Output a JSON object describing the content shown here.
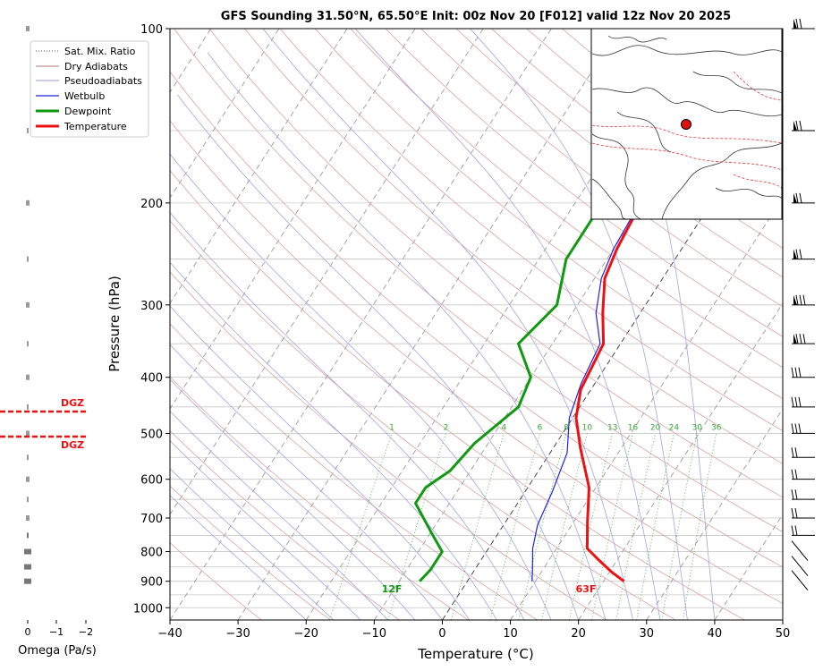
{
  "title": "GFS Sounding 31.50°N, 65.50°E Init: 00z Nov 20 [F012] valid 12z Nov 20 2025",
  "chart_data": {
    "type": "line",
    "subtype": "skew-t log-p",
    "xlabel": "Temperature (°C)",
    "ylabel": "Pressure (hPa)",
    "xlim": [
      -40,
      50
    ],
    "ylim": [
      1050,
      100
    ],
    "yscale": "log",
    "x_ticks": [
      -40,
      -30,
      -20,
      -10,
      0,
      10,
      20,
      30,
      40,
      50
    ],
    "x_tick_labels": [
      "−40",
      "−30",
      "−20",
      "−10",
      "0",
      "10",
      "20",
      "30",
      "40",
      "50"
    ],
    "y_ticks": [
      100,
      200,
      300,
      400,
      500,
      600,
      700,
      800,
      900,
      1000
    ],
    "y_tick_labels": [
      "100",
      "200",
      "300",
      "400",
      "500",
      "600",
      "700",
      "800",
      "900",
      "1000"
    ],
    "grid": true,
    "legend_position": "top-left",
    "legend": [
      "Sat. Mix. Ratio",
      "Dry Adiabats",
      "Pseudoadiabats",
      "Wetbulb",
      "Dewpoint",
      "Temperature"
    ],
    "mixing_ratio_labels": [
      "1",
      "2",
      "4",
      "6",
      "8",
      "10",
      "13",
      "16",
      "20",
      "24",
      "30",
      "36"
    ],
    "series": [
      {
        "name": "Temperature",
        "color": "#ee1111",
        "points": [
          [
            23,
            900
          ],
          [
            20.5,
            870
          ],
          [
            17.5,
            830
          ],
          [
            14.5,
            790
          ],
          [
            12,
            710
          ],
          [
            9,
            620
          ],
          [
            4,
            530
          ],
          [
            0.5,
            470
          ],
          [
            -1.5,
            420
          ],
          [
            -2.5,
            350
          ],
          [
            -5.5,
            310
          ],
          [
            -8.5,
            270
          ],
          [
            -9.5,
            240
          ],
          [
            -10.3,
            200
          ],
          [
            -9.5,
            170
          ],
          [
            -8.5,
            130
          ],
          [
            -7.5,
            100
          ]
        ]
      },
      {
        "name": "Dewpoint",
        "color": "#119911",
        "points": [
          [
            -7,
            900
          ],
          [
            -6.5,
            860
          ],
          [
            -6.5,
            800
          ],
          [
            -10,
            740
          ],
          [
            -15,
            660
          ],
          [
            -15,
            620
          ],
          [
            -13,
            580
          ],
          [
            -12,
            520
          ],
          [
            -9,
            450
          ],
          [
            -10,
            400
          ],
          [
            -15,
            350
          ],
          [
            -13,
            300
          ],
          [
            -16,
            250
          ],
          [
            -16,
            200
          ],
          [
            -17,
            150
          ],
          [
            -17,
            130
          ],
          [
            -12,
            100
          ]
        ]
      },
      {
        "name": "Wetbulb",
        "color": "#2222dd",
        "points": [
          [
            9.5,
            900
          ],
          [
            8.5,
            860
          ],
          [
            6.5,
            790
          ],
          [
            5,
            720
          ],
          [
            4,
            630
          ],
          [
            2.5,
            540
          ],
          [
            -0.5,
            470
          ],
          [
            -2,
            410
          ],
          [
            -3,
            350
          ],
          [
            -6.5,
            310
          ],
          [
            -9,
            270
          ],
          [
            -10,
            240
          ],
          [
            -10.5,
            200
          ],
          [
            -9.5,
            170
          ],
          [
            -8.5,
            130
          ],
          [
            -7.5,
            100
          ]
        ]
      }
    ],
    "annotations": [
      "12F",
      "63F"
    ],
    "omega_panel": {
      "xlabel": "Omega (Pa/s)",
      "x_tick_labels": [
        "0",
        "−1",
        "−2"
      ],
      "dgz_label": "DGZ",
      "dgz_levels_hpa": [
        456,
        513
      ]
    },
    "wind_barb_levels_hpa": [
      100,
      150,
      200,
      250,
      300,
      350,
      400,
      450,
      500,
      550,
      600,
      650,
      700,
      750,
      800,
      850,
      900
    ]
  }
}
